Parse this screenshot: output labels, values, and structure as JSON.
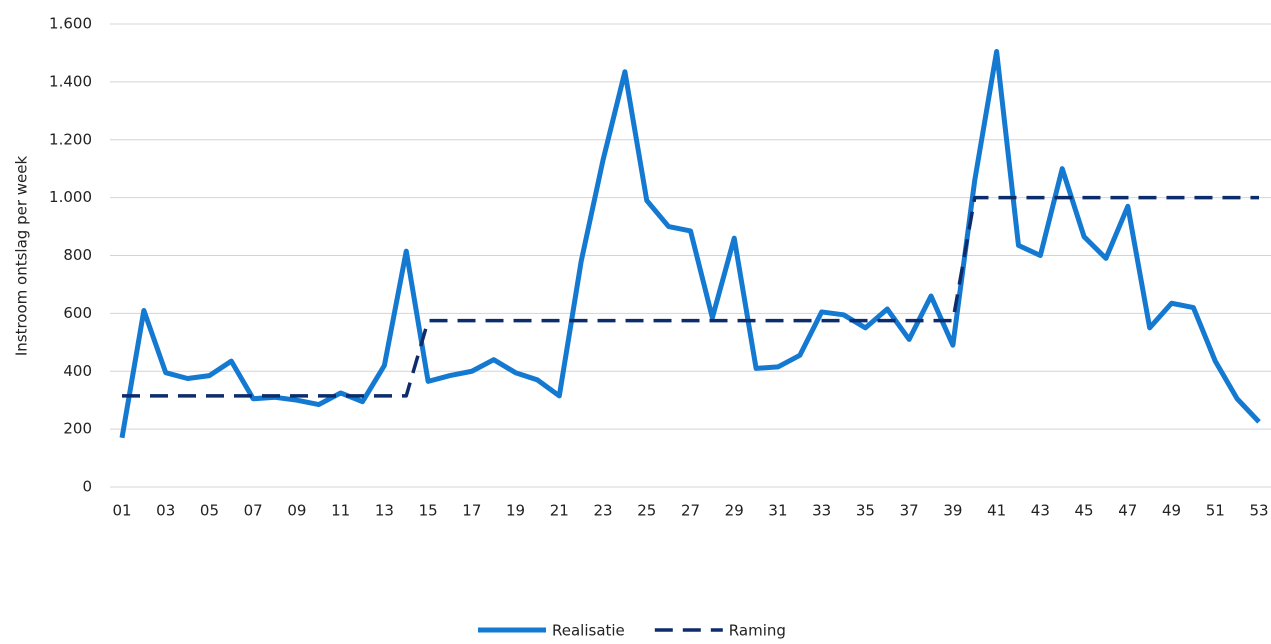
{
  "chart_data": {
    "type": "line",
    "y_label": "Instroom ontslag per week",
    "categories": [
      "01",
      null,
      "03",
      null,
      "05",
      null,
      "07",
      null,
      "09",
      null,
      "11",
      null,
      "13",
      null,
      "15",
      null,
      "17",
      null,
      "19",
      null,
      "21",
      null,
      "23",
      null,
      "25",
      null,
      "27",
      null,
      "29",
      null,
      "31",
      null,
      "33",
      null,
      "35",
      null,
      "37",
      null,
      "39",
      null,
      "41",
      null,
      "43",
      null,
      "45",
      null,
      "47",
      null,
      "49",
      null,
      "51",
      null,
      "53"
    ],
    "series": [
      {
        "name": "Realisatie",
        "color": "#1479d1",
        "dash": false,
        "values": [
          170,
          610,
          395,
          375,
          385,
          435,
          305,
          310,
          300,
          285,
          325,
          295,
          420,
          815,
          365,
          385,
          400,
          440,
          395,
          370,
          315,
          780,
          1130,
          1435,
          990,
          900,
          885,
          585,
          860,
          410,
          415,
          455,
          605,
          595,
          550,
          615,
          510,
          660,
          490,
          1060,
          1505,
          835,
          800,
          1100,
          865,
          790,
          970,
          550,
          635,
          620,
          435,
          305,
          225
        ]
      },
      {
        "name": "Raming",
        "color": "#0d2c6c",
        "dash": true,
        "values": [
          315,
          315,
          315,
          315,
          315,
          315,
          315,
          315,
          315,
          315,
          315,
          315,
          315,
          315,
          575,
          575,
          575,
          575,
          575,
          575,
          575,
          575,
          575,
          575,
          575,
          575,
          575,
          575,
          575,
          575,
          575,
          575,
          575,
          575,
          575,
          575,
          575,
          575,
          575,
          1000,
          1000,
          1000,
          1000,
          1000,
          1000,
          1000,
          1000,
          1000,
          1000,
          1000,
          1000,
          1000,
          1000
        ]
      }
    ],
    "ylim": [
      0,
      1600
    ],
    "yticks": [
      0,
      200,
      400,
      600,
      800,
      {
        "value": 1000,
        "label": "1.000"
      },
      {
        "value": 1200,
        "label": "1.200"
      },
      {
        "value": 1400,
        "label": "1.400"
      },
      {
        "value": 1600,
        "label": "1.600"
      }
    ],
    "grid": true,
    "legend": "bottom"
  }
}
